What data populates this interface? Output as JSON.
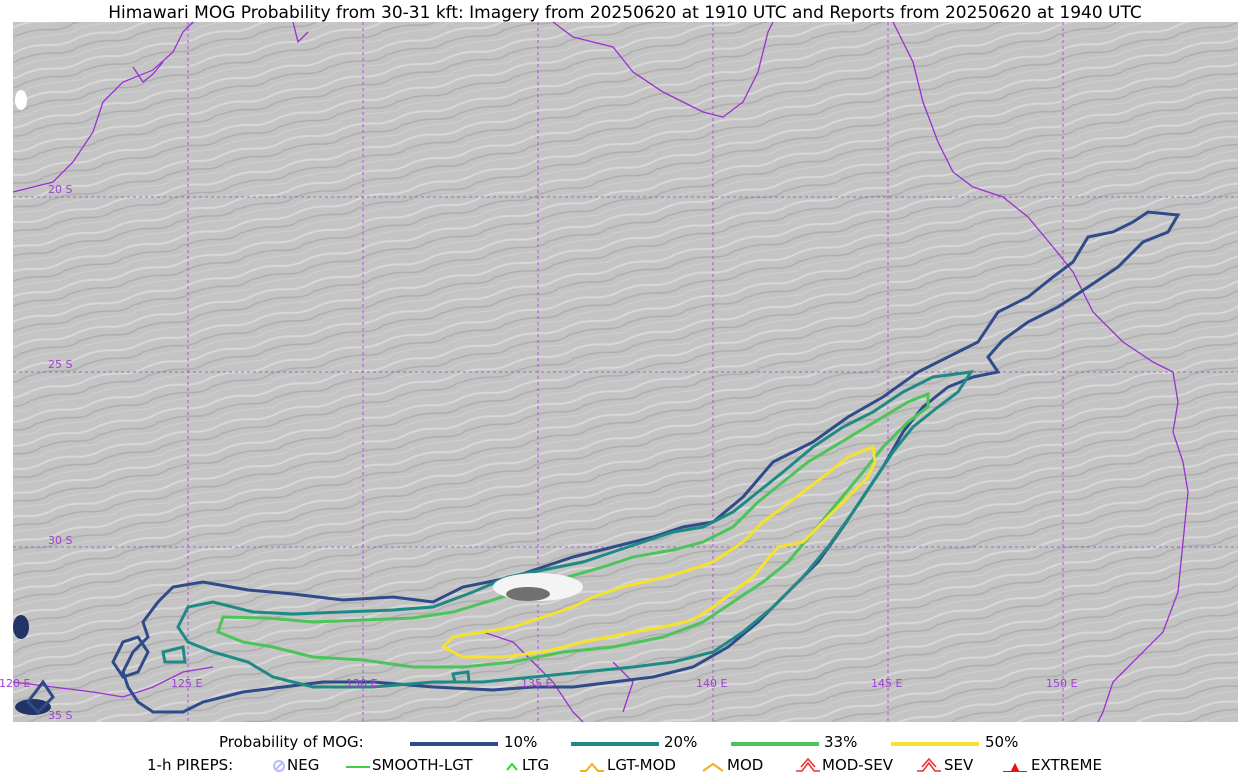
{
  "title": "Himawari MOG Probability from 30-31 kft: Imagery from 20250620 at 1910 UTC and Reports from 20250620 at 1940 UTC",
  "map": {
    "lat_labels": [
      "20 S",
      "25 S",
      "30 S",
      "35 S"
    ],
    "lon_labels": [
      "120 E",
      "125 E",
      "130 E",
      "135 E",
      "140 E",
      "145 E",
      "150 E"
    ],
    "grid_color": "#a040d0",
    "coast_color": "#9b30d0"
  },
  "legend_prob": {
    "label": "Probability of MOG:",
    "levels": [
      {
        "label": "10%",
        "color": "#2f4b8a"
      },
      {
        "label": "20%",
        "color": "#1f8a84"
      },
      {
        "label": "33%",
        "color": "#4cc45a"
      },
      {
        "label": "50%",
        "color": "#f5e130"
      }
    ]
  },
  "legend_pireps": {
    "label": "1-h PIREPS:",
    "items": [
      {
        "label": "NEG",
        "symbol": "neg-icon",
        "color": "#b8b8ff"
      },
      {
        "label": "SMOOTH-LGT",
        "symbol": "line-icon",
        "color": "#44cc44"
      },
      {
        "label": "LTG",
        "symbol": "chevron-up-icon",
        "color": "#22dd22"
      },
      {
        "label": "LGT-MOD",
        "symbol": "hat-icon",
        "color": "#f0b020"
      },
      {
        "label": "MOD",
        "symbol": "chevron-up-icon",
        "color": "#f0b020"
      },
      {
        "label": "MOD-SEV",
        "symbol": "double-hat-icon",
        "color": "#ee3333"
      },
      {
        "label": "SEV",
        "symbol": "double-hat-icon",
        "color": "#ee3333"
      },
      {
        "label": "EXTREME",
        "symbol": "filled-hat-icon",
        "color": "#ee1111"
      }
    ]
  }
}
